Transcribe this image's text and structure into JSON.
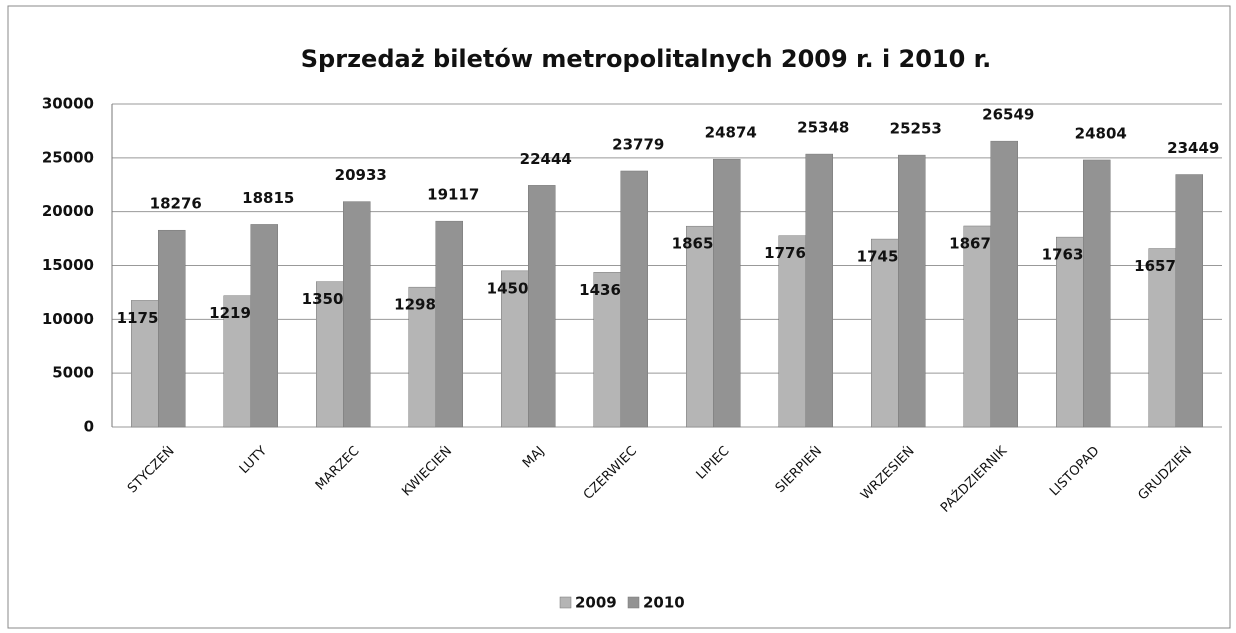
{
  "chart_data": {
    "type": "bar",
    "title": "Sprzedaż biletów metropolitalnych 2009 r. i 2010 r.",
    "categories": [
      "STYCZEŃ",
      "LUTY",
      "MARZEC",
      "KWIECIEŃ",
      "MAJ",
      "CZERWIEC",
      "LIPIEC",
      "SIERPIEŃ",
      "WRZESIEŃ",
      "PAŹDZIERNIK",
      "LISTOPAD",
      "GRUDZIEŃ"
    ],
    "series": [
      {
        "name": "2009",
        "color": "#b5b5b5",
        "values": [
          11758,
          12195,
          13500,
          12987,
          14505,
          14367,
          18650,
          17769,
          17453,
          18670,
          17635,
          16576
        ]
      },
      {
        "name": "2010",
        "color": "#939393",
        "values": [
          18276,
          18815,
          20933,
          19117,
          22444,
          23779,
          24874,
          25348,
          25253,
          26549,
          24804,
          23449
        ]
      }
    ],
    "ylim": [
      0,
      30000
    ],
    "yticks": [
      0,
      5000,
      10000,
      15000,
      20000,
      25000,
      30000
    ],
    "grid": true,
    "legend": "bottom"
  }
}
